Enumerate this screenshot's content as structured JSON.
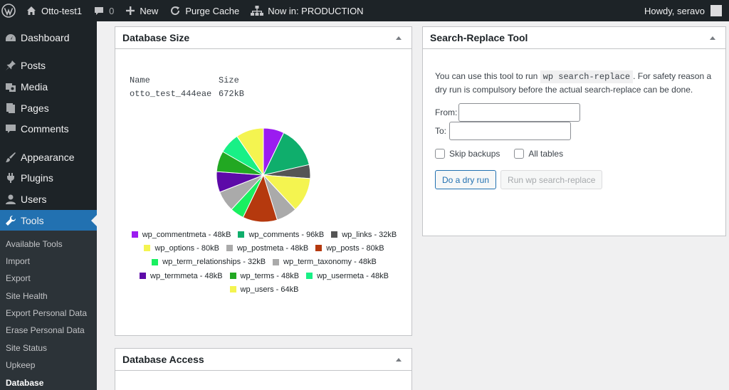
{
  "adminbar": {
    "site_name": "Otto-test1",
    "comments_count": "0",
    "new_label": "New",
    "purge_label": "Purge Cache",
    "env_label": "Now in: PRODUCTION",
    "howdy": "Howdy, seravo"
  },
  "sidebar": {
    "items": [
      {
        "label": "Dashboard",
        "icon": "dashboard-icon"
      },
      {
        "label": "Posts",
        "icon": "pin-icon"
      },
      {
        "label": "Media",
        "icon": "media-icon"
      },
      {
        "label": "Pages",
        "icon": "pages-icon"
      },
      {
        "label": "Comments",
        "icon": "comment-icon"
      },
      {
        "label": "Appearance",
        "icon": "brush-icon"
      },
      {
        "label": "Plugins",
        "icon": "plugin-icon"
      },
      {
        "label": "Users",
        "icon": "user-icon"
      },
      {
        "label": "Tools",
        "icon": "wrench-icon"
      }
    ],
    "submenu": [
      "Available Tools",
      "Import",
      "Export",
      "Site Health",
      "Export Personal Data",
      "Erase Personal Data",
      "Site Status",
      "Upkeep",
      "Database"
    ],
    "active_color": "#2271b1"
  },
  "dbsize": {
    "title": "Database Size",
    "col_name": "Name",
    "col_size": "Size",
    "db_name": "otto_test_444eae",
    "db_size": "672kB"
  },
  "chart_data": {
    "type": "pie",
    "series": [
      {
        "name": "wp_commentmeta - 48kB",
        "value": 48,
        "color": "#9b1cf0"
      },
      {
        "name": "wp_comments - 96kB",
        "value": 96,
        "color": "#0fae6c"
      },
      {
        "name": "wp_links - 32kB",
        "value": 32,
        "color": "#555555"
      },
      {
        "name": "wp_options - 80kB",
        "value": 80,
        "color": "#f4f450"
      },
      {
        "name": "wp_postmeta - 48kB",
        "value": 48,
        "color": "#aaaaaa"
      },
      {
        "name": "wp_posts - 80kB",
        "value": 80,
        "color": "#b5390e"
      },
      {
        "name": "wp_term_relationships - 32kB",
        "value": 32,
        "color": "#19f060"
      },
      {
        "name": "wp_term_taxonomy - 48kB",
        "value": 48,
        "color": "#aaaaaa"
      },
      {
        "name": "wp_termmeta - 48kB",
        "value": 48,
        "color": "#5d0aa8"
      },
      {
        "name": "wp_terms - 48kB",
        "value": 48,
        "color": "#22a822"
      },
      {
        "name": "wp_usermeta - 48kB",
        "value": 48,
        "color": "#19f086"
      },
      {
        "name": "wp_users - 64kB",
        "value": 64,
        "color": "#f4f450"
      }
    ],
    "legend_position": "bottom"
  },
  "dbaccess": {
    "title": "Database Access"
  },
  "search": {
    "title": "Search-Replace Tool",
    "desc_before": "You can use this tool to run",
    "desc_code": "wp search-replace",
    "desc_after": ". For safety reason a dry run is compulsory before the actual search-replace can be done.",
    "from_label": "From:",
    "from_value": "",
    "to_label": "To:",
    "to_value": "",
    "skip_backups": "Skip backups",
    "all_tables": "All tables",
    "dry_run": "Do a dry run",
    "run": "Run wp search-replace"
  }
}
